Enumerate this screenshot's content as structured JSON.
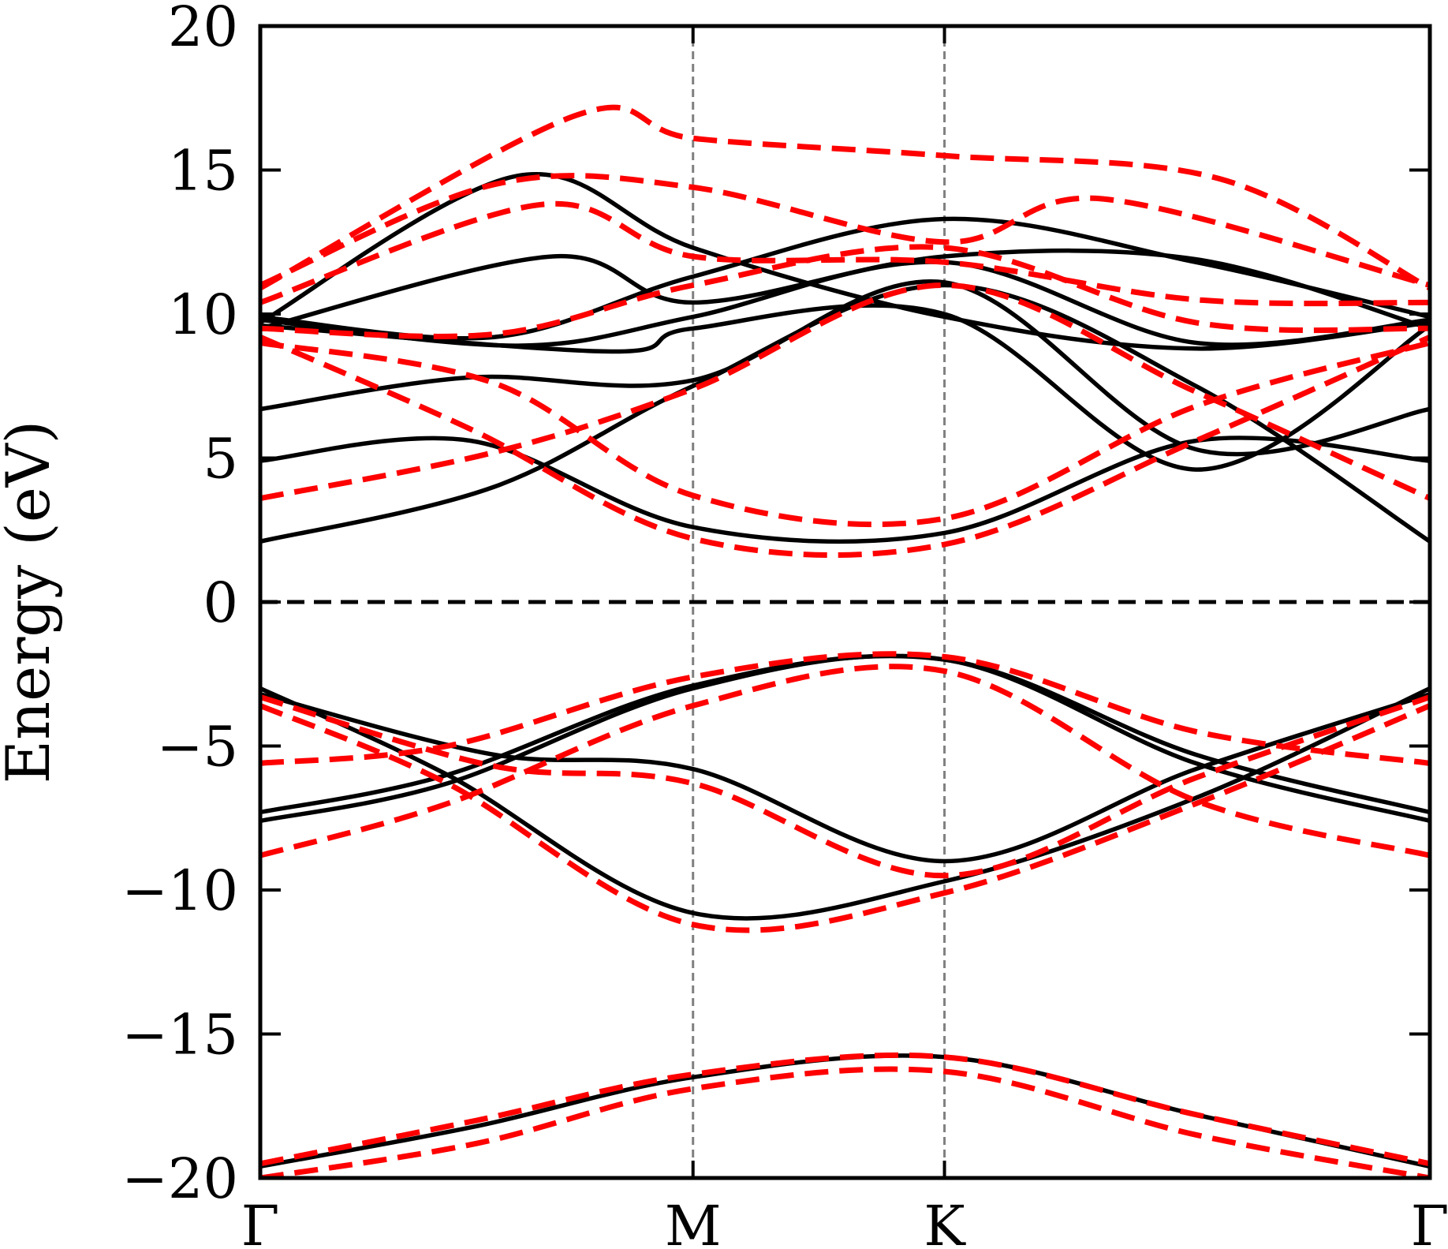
{
  "chart_data": {
    "type": "line",
    "title": "",
    "xlabel": "",
    "ylabel": "Energy (eV)",
    "ylim": [
      -20,
      20
    ],
    "yticks": [
      20,
      15,
      10,
      5,
      0,
      -5,
      -10,
      -15,
      -20
    ],
    "ytick_labels": [
      "20",
      "15",
      "10",
      "5",
      "0",
      "−5",
      "−10",
      "−15",
      "−20"
    ],
    "xlim": [
      0,
      1
    ],
    "kpoints": [
      {
        "label": "Γ",
        "x": 0.0
      },
      {
        "label": "M",
        "x": 0.37
      },
      {
        "label": "K",
        "x": 0.585
      },
      {
        "label": "Γ",
        "x": 1.0
      }
    ],
    "fermi_level": 0,
    "grid": false,
    "series": [
      {
        "style": "solid",
        "color": "#000000",
        "bands": [
          [
            [
              0,
              -19.6
            ],
            [
              0.185,
              -18.2
            ],
            [
              0.37,
              -16.5
            ],
            [
              0.585,
              -15.8
            ],
            [
              0.8,
              -17.8
            ],
            [
              1,
              -19.6
            ]
          ],
          [
            [
              0,
              -7.6
            ],
            [
              0.16,
              -6.3
            ],
            [
              0.37,
              -3.0
            ],
            [
              0.585,
              -2.0
            ],
            [
              0.8,
              -5.6
            ],
            [
              1,
              -7.6
            ]
          ],
          [
            [
              0,
              -7.3
            ],
            [
              0.16,
              -6.0
            ],
            [
              0.37,
              -2.9
            ],
            [
              0.585,
              -2.0
            ],
            [
              0.8,
              -5.3
            ],
            [
              1,
              -7.3
            ]
          ],
          [
            [
              0,
              -3.0
            ],
            [
              0.16,
              -6.0
            ],
            [
              0.37,
              -10.8
            ],
            [
              0.585,
              -9.7
            ],
            [
              0.8,
              -6.8
            ],
            [
              1,
              -3.0
            ]
          ],
          [
            [
              0,
              -3.2
            ],
            [
              0.2,
              -5.3
            ],
            [
              0.37,
              -5.8
            ],
            [
              0.585,
              -9.0
            ],
            [
              0.8,
              -5.8
            ],
            [
              1,
              -3.2
            ]
          ],
          [
            [
              0,
              2.1
            ],
            [
              0.2,
              4.0
            ],
            [
              0.37,
              7.5
            ],
            [
              0.585,
              11.0
            ],
            [
              0.8,
              7.5
            ],
            [
              1,
              2.1
            ]
          ],
          [
            [
              0,
              4.9
            ],
            [
              0.18,
              5.6
            ],
            [
              0.37,
              2.6
            ],
            [
              0.585,
              2.4
            ],
            [
              0.8,
              5.6
            ],
            [
              1,
              4.9
            ]
          ],
          [
            [
              0,
              6.7
            ],
            [
              0.18,
              7.8
            ],
            [
              0.37,
              7.7
            ],
            [
              0.585,
              11.1
            ],
            [
              0.8,
              5.3
            ],
            [
              1,
              6.7
            ]
          ],
          [
            [
              0,
              9.8
            ],
            [
              0.22,
              8.9
            ],
            [
              0.37,
              9.9
            ],
            [
              0.585,
              11.8
            ],
            [
              0.8,
              9.0
            ],
            [
              1,
              9.8
            ]
          ],
          [
            [
              0,
              9.5
            ],
            [
              0.25,
              12.0
            ],
            [
              0.37,
              10.4
            ],
            [
              0.585,
              12.0
            ],
            [
              0.8,
              11.9
            ],
            [
              1,
              9.5
            ]
          ],
          [
            [
              0,
              9.7
            ],
            [
              0.22,
              14.8
            ],
            [
              0.37,
              12.3
            ],
            [
              0.585,
              9.9
            ],
            [
              0.8,
              8.8
            ],
            [
              1,
              9.7
            ]
          ],
          [
            [
              0,
              9.9
            ],
            [
              0.2,
              9.2
            ],
            [
              0.37,
              11.3
            ],
            [
              0.585,
              13.3
            ],
            [
              0.8,
              11.8
            ],
            [
              1,
              9.9
            ]
          ],
          [
            [
              0,
              9.6
            ],
            [
              0.3,
              8.7
            ],
            [
              0.37,
              9.5
            ],
            [
              0.585,
              10.0
            ],
            [
              0.8,
              4.6
            ],
            [
              1,
              9.6
            ]
          ]
        ]
      },
      {
        "style": "dashed",
        "color": "#ff0000",
        "bands": [
          [
            [
              0,
              -19.5
            ],
            [
              0.185,
              -18.0
            ],
            [
              0.37,
              -16.4
            ],
            [
              0.585,
              -15.8
            ],
            [
              0.8,
              -17.8
            ],
            [
              1,
              -19.5
            ]
          ],
          [
            [
              0,
              -20.0
            ],
            [
              0.185,
              -18.8
            ],
            [
              0.37,
              -16.9
            ],
            [
              0.585,
              -16.3
            ],
            [
              0.8,
              -18.5
            ],
            [
              1,
              -20.0
            ]
          ],
          [
            [
              0,
              -8.8
            ],
            [
              0.16,
              -7.0
            ],
            [
              0.37,
              -3.6
            ],
            [
              0.585,
              -2.4
            ],
            [
              0.8,
              -6.9
            ],
            [
              1,
              -8.8
            ]
          ],
          [
            [
              0,
              -5.6
            ],
            [
              0.16,
              -5.0
            ],
            [
              0.37,
              -2.6
            ],
            [
              0.585,
              -1.9
            ],
            [
              0.8,
              -4.5
            ],
            [
              1,
              -5.6
            ]
          ],
          [
            [
              0,
              -3.6
            ],
            [
              0.16,
              -6.3
            ],
            [
              0.37,
              -11.2
            ],
            [
              0.585,
              -10.1
            ],
            [
              0.8,
              -7.0
            ],
            [
              1,
              -3.6
            ]
          ],
          [
            [
              0,
              -3.3
            ],
            [
              0.2,
              -5.7
            ],
            [
              0.37,
              -6.3
            ],
            [
              0.585,
              -9.5
            ],
            [
              0.8,
              -6.1
            ],
            [
              1,
              -3.3
            ]
          ],
          [
            [
              0,
              3.6
            ],
            [
              0.2,
              5.2
            ],
            [
              0.37,
              7.4
            ],
            [
              0.585,
              11.0
            ],
            [
              0.8,
              7.3
            ],
            [
              1,
              3.6
            ]
          ],
          [
            [
              0,
              9.2
            ],
            [
              0.18,
              6.0
            ],
            [
              0.37,
              2.2
            ],
            [
              0.585,
              2.0
            ],
            [
              0.8,
              5.6
            ],
            [
              1,
              9.2
            ]
          ],
          [
            [
              0,
              9.0
            ],
            [
              0.2,
              7.6
            ],
            [
              0.37,
              3.7
            ],
            [
              0.585,
              2.9
            ],
            [
              0.8,
              6.8
            ],
            [
              1,
              9.0
            ]
          ],
          [
            [
              0,
              10.9
            ],
            [
              0.27,
              16.9
            ],
            [
              0.37,
              16.1
            ],
            [
              0.585,
              15.5
            ],
            [
              0.82,
              14.7
            ],
            [
              1,
              10.9
            ]
          ],
          [
            [
              0,
              11.0
            ],
            [
              0.2,
              14.5
            ],
            [
              0.37,
              14.4
            ],
            [
              0.585,
              12.5
            ],
            [
              0.72,
              14.0
            ],
            [
              1,
              11.0
            ]
          ],
          [
            [
              0,
              10.4
            ],
            [
              0.24,
              13.8
            ],
            [
              0.37,
              12.0
            ],
            [
              0.585,
              11.8
            ],
            [
              0.8,
              10.5
            ],
            [
              1,
              10.4
            ]
          ],
          [
            [
              0,
              9.5
            ],
            [
              0.2,
              9.3
            ],
            [
              0.37,
              11.0
            ],
            [
              0.585,
              12.3
            ],
            [
              0.8,
              9.7
            ],
            [
              1,
              9.5
            ]
          ]
        ]
      }
    ]
  }
}
